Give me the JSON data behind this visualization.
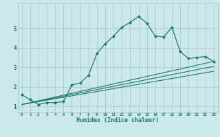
{
  "xlabel": "Humidex (Indice chaleur)",
  "background_color": "#cde8eb",
  "grid_color": "#9fc8cc",
  "line_color": "#1a7a6e",
  "xlim": [
    -0.5,
    23.5
  ],
  "ylim": [
    0.7,
    6.3
  ],
  "yticks": [
    1,
    2,
    3,
    4,
    5
  ],
  "xticks": [
    0,
    1,
    2,
    3,
    4,
    5,
    6,
    7,
    8,
    9,
    10,
    11,
    12,
    13,
    14,
    15,
    16,
    17,
    18,
    19,
    20,
    21,
    22,
    23
  ],
  "series": [
    {
      "x": [
        0,
        1,
        2,
        3,
        4,
        5,
        6,
        7,
        8,
        9,
        10,
        11,
        12,
        13,
        14,
        15,
        16,
        17,
        18,
        19,
        20,
        21,
        22,
        23
      ],
      "y": [
        1.6,
        1.35,
        1.1,
        1.2,
        1.2,
        1.25,
        2.1,
        2.2,
        2.6,
        3.7,
        4.2,
        4.6,
        5.05,
        5.3,
        5.6,
        5.25,
        4.6,
        4.55,
        5.05,
        3.8,
        3.45,
        3.5,
        3.55,
        3.3
      ],
      "has_markers": true
    },
    {
      "x": [
        0,
        23
      ],
      "y": [
        1.1,
        3.3
      ],
      "has_markers": false
    },
    {
      "x": [
        0,
        23
      ],
      "y": [
        1.1,
        3.05
      ],
      "has_markers": false
    },
    {
      "x": [
        0,
        23
      ],
      "y": [
        1.1,
        2.8
      ],
      "has_markers": false
    }
  ]
}
